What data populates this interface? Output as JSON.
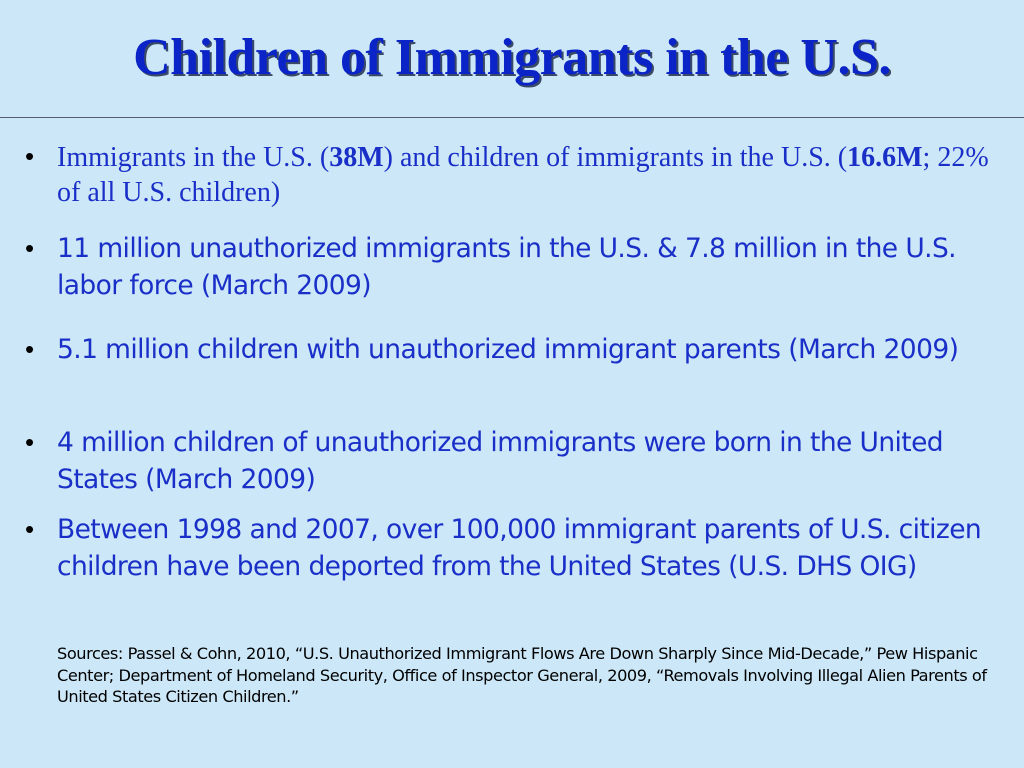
{
  "slide": {
    "title": "Children of Immigrants in the U.S.",
    "bullet_symbol": "•",
    "bullets": [
      {
        "part1": "Immigrants in the U.S. (",
        "bold1": "38M",
        "part2": ") and children of immigrants in the U.S. (",
        "bold2": "16.6M",
        "part3": "; 22% of all U.S. children)"
      },
      {
        "text": "11 million unauthorized immigrants in the U.S. & 7.8 million in the U.S. labor force (March 2009)"
      },
      {
        "text": "5.1 million children with unauthorized immigrant parents (March 2009)"
      },
      {
        "text": "4 million children of unauthorized immigrants were born in the United States (March 2009)"
      },
      {
        "text": "Between 1998 and 2007, over 100,000 immigrant parents of U.S. citizen children have been deported from the United States (U.S. DHS OIG)"
      }
    ],
    "sources": "Sources: Passel & Cohn, 2010, “U.S. Unauthorized Immigrant Flows Are Down Sharply Since Mid-Decade,” Pew Hispanic Center; Department of Homeland Security, Office of Inspector General, 2009, “Removals Involving Illegal Alien Parents of United States Citizen Children.”",
    "colors": {
      "background": "#cce8f8",
      "title": "#0b24c8",
      "text": "#1a2fc8",
      "rule": "#555e6e"
    }
  }
}
